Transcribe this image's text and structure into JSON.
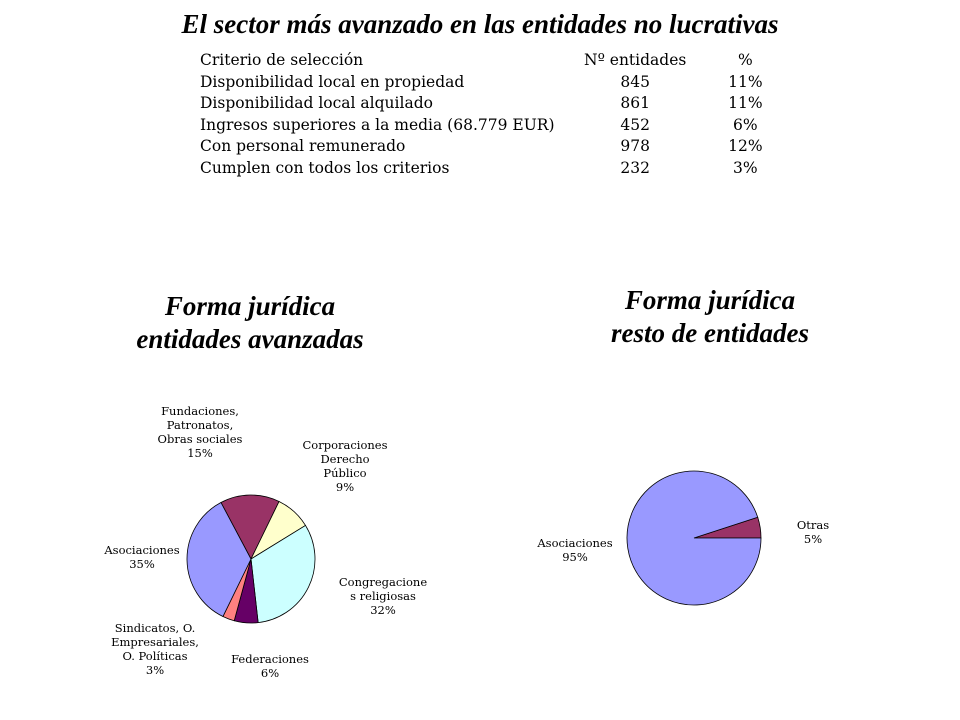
{
  "title": "El sector más avanzado en las entidades no lucrativas",
  "table": {
    "headers": [
      "Criterio de selección",
      "Nº entidades",
      "%"
    ],
    "rows": [
      [
        "Disponibilidad local en propiedad",
        "845",
        "11%"
      ],
      [
        "Disponibilidad local alquilado",
        "861",
        "11%"
      ],
      [
        "Ingresos superiores a la media (68.779 EUR)",
        "452",
        "6%"
      ],
      [
        "Con personal remunerado",
        "978",
        "12%"
      ],
      [
        "Cumplen con todos los criterios",
        "232",
        "3%"
      ]
    ]
  },
  "chart_data": [
    {
      "type": "pie",
      "title": [
        "Forma jurídica",
        "entidades avanzadas"
      ],
      "slices": [
        {
          "label": [
            "Fundaciones,",
            "Patronatos,",
            "Obras sociales"
          ],
          "value": 15,
          "value_label": "15%",
          "color": "#993366"
        },
        {
          "label": [
            "Corporaciones",
            "Derecho",
            "Público"
          ],
          "value": 9,
          "value_label": "9%",
          "color": "#ffffcc"
        },
        {
          "label": [
            "Congregacione",
            "s religiosas"
          ],
          "value": 32,
          "value_label": "32%",
          "color": "#ccffff"
        },
        {
          "label": [
            "Federaciones"
          ],
          "value": 6,
          "value_label": "6%",
          "color": "#660066"
        },
        {
          "label": [
            "Sindicatos, O.",
            "Empresariales,",
            "O. Políticas"
          ],
          "value": 3,
          "value_label": "3%",
          "color": "#ff8080"
        },
        {
          "label": [
            "Asociaciones"
          ],
          "value": 35,
          "value_label": "35%",
          "color": "#9999ff"
        }
      ]
    },
    {
      "type": "pie",
      "title": [
        "Forma jurídica",
        "resto de entidades"
      ],
      "slices": [
        {
          "label": [
            "Otras"
          ],
          "value": 5,
          "value_label": "5%",
          "color": "#993366"
        },
        {
          "label": [
            "Asociaciones"
          ],
          "value": 95,
          "value_label": "95%",
          "color": "#9999ff"
        }
      ]
    }
  ]
}
